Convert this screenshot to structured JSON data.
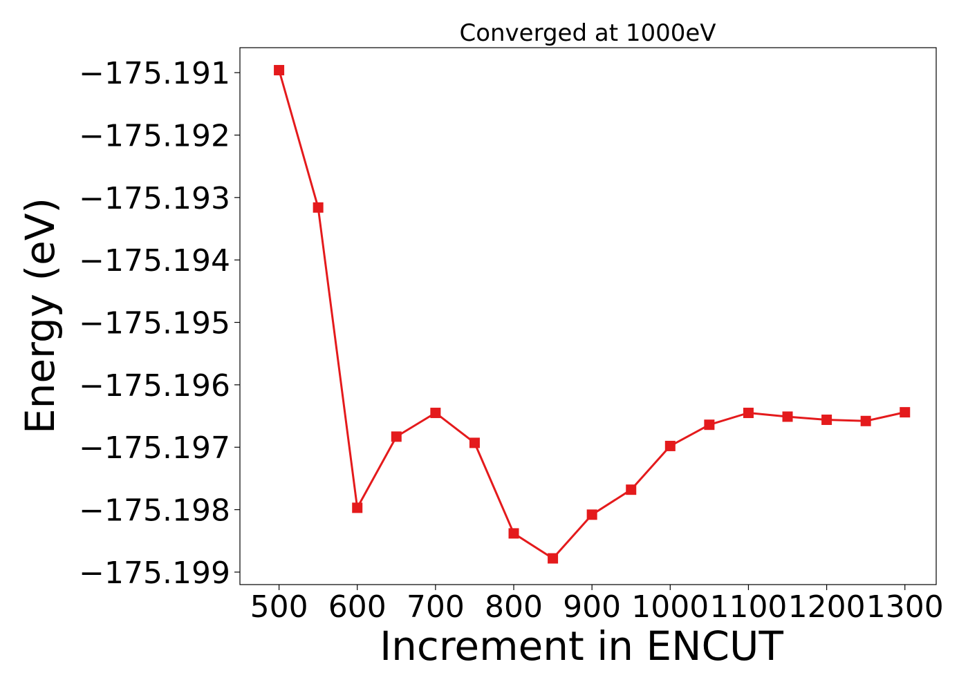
{
  "chart_data": {
    "type": "line",
    "title": "Converged at 1000eV",
    "xlabel": "Increment in ENCUT",
    "ylabel": "Energy (eV)",
    "xlim": [
      450,
      1340
    ],
    "ylim": [
      -175.1992,
      -175.1906
    ],
    "x_ticks": [
      500,
      600,
      700,
      800,
      900,
      1000,
      1100,
      1200,
      1300
    ],
    "x_tick_labels": [
      "500",
      "600",
      "700",
      "800",
      "900",
      "1000",
      "1100",
      "1200",
      "1300"
    ],
    "y_ticks": [
      -175.191,
      -175.192,
      -175.193,
      -175.194,
      -175.195,
      -175.196,
      -175.197,
      -175.198,
      -175.199
    ],
    "y_tick_labels": [
      "−175.191",
      "−175.192",
      "−175.193",
      "−175.194",
      "−175.195",
      "−175.196",
      "−175.197",
      "−175.198",
      "−175.199"
    ],
    "grid": false,
    "marker": "square",
    "color": "#e41a1c",
    "series": [
      {
        "x": [
          500,
          550,
          600,
          650,
          700,
          750,
          800,
          850,
          900,
          950,
          1000,
          1050,
          1100,
          1150,
          1200,
          1250,
          1300
        ],
        "y": [
          -175.19096,
          -175.19316,
          -175.19797,
          -175.19683,
          -175.19645,
          -175.19693,
          -175.19838,
          -175.19878,
          -175.19808,
          -175.19768,
          -175.19698,
          -175.19664,
          -175.19645,
          -175.19651,
          -175.19656,
          -175.19658,
          -175.19644
        ]
      }
    ]
  }
}
